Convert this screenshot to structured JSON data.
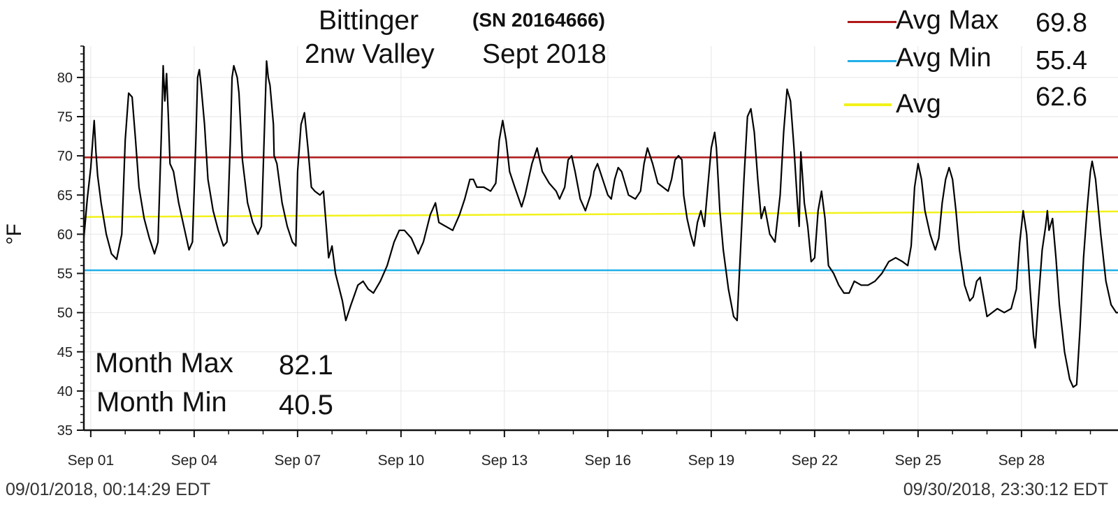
{
  "header": {
    "title_line1": "Bittinger",
    "serial": "(SN 20164666)",
    "title_line2": "2nw Valley",
    "period": "Sept 2018"
  },
  "legend": {
    "avg_max": {
      "label": "Avg Max",
      "value": "69.8",
      "color": "#b01818"
    },
    "avg_min": {
      "label": "Avg Min",
      "value": "55.4",
      "color": "#20b0e8"
    },
    "avg": {
      "label": "Avg",
      "value": "62.6",
      "color": "#f2f21a"
    }
  },
  "stats": {
    "month_max_label": "Month Max",
    "month_max_value": "82.1",
    "month_min_label": "Month Min",
    "month_min_value": "40.5"
  },
  "footer": {
    "start": "09/01/2018, 00:14:29 EDT",
    "end": "09/30/2018, 23:30:12 EDT"
  },
  "chart_data": {
    "type": "line",
    "ylabel": "°F",
    "ylim": [
      35,
      84
    ],
    "yticks": [
      35,
      40,
      45,
      50,
      55,
      60,
      65,
      70,
      75,
      80
    ],
    "xlim": [
      0.8,
      30.8
    ],
    "xticks": [
      {
        "day": 1,
        "label": "Sep 01"
      },
      {
        "day": 4,
        "label": "Sep 04"
      },
      {
        "day": 7,
        "label": "Sep 07"
      },
      {
        "day": 10,
        "label": "Sep 10"
      },
      {
        "day": 13,
        "label": "Sep 13"
      },
      {
        "day": 16,
        "label": "Sep 16"
      },
      {
        "day": 19,
        "label": "Sep 19"
      },
      {
        "day": 22,
        "label": "Sep 22"
      },
      {
        "day": 25,
        "label": "Sep 25"
      },
      {
        "day": 28,
        "label": "Sep 28"
      }
    ],
    "grid": true,
    "reference_lines": [
      {
        "name": "Avg Max",
        "y": 69.8,
        "color": "#b01818"
      },
      {
        "name": "Avg Min",
        "y": 55.4,
        "color": "#20b0e8"
      },
      {
        "name": "Avg",
        "points": [
          [
            0.8,
            62.2
          ],
          [
            30.8,
            62.9
          ]
        ],
        "color": "#f2f21a"
      }
    ],
    "series": [
      {
        "color": "#000000",
        "points": [
          [
            0.8,
            59.5
          ],
          [
            0.9,
            64.5
          ],
          [
            1.0,
            68.5
          ],
          [
            1.1,
            74.5
          ],
          [
            1.15,
            70.5
          ],
          [
            1.2,
            67.5
          ],
          [
            1.3,
            64
          ],
          [
            1.45,
            60
          ],
          [
            1.6,
            57.5
          ],
          [
            1.75,
            56.8
          ],
          [
            1.9,
            60
          ],
          [
            2.0,
            72
          ],
          [
            2.1,
            78
          ],
          [
            2.2,
            77.5
          ],
          [
            2.3,
            72
          ],
          [
            2.4,
            66
          ],
          [
            2.55,
            62
          ],
          [
            2.7,
            59.5
          ],
          [
            2.85,
            57.5
          ],
          [
            2.95,
            59
          ],
          [
            3.05,
            73
          ],
          [
            3.1,
            81.5
          ],
          [
            3.15,
            77
          ],
          [
            3.2,
            80.5
          ],
          [
            3.25,
            75
          ],
          [
            3.3,
            69
          ],
          [
            3.4,
            68
          ],
          [
            3.55,
            64
          ],
          [
            3.7,
            61
          ],
          [
            3.85,
            58
          ],
          [
            3.95,
            59
          ],
          [
            4.05,
            72
          ],
          [
            4.1,
            80
          ],
          [
            4.15,
            81
          ],
          [
            4.2,
            79
          ],
          [
            4.3,
            74
          ],
          [
            4.4,
            67
          ],
          [
            4.55,
            63
          ],
          [
            4.7,
            60.5
          ],
          [
            4.85,
            58.5
          ],
          [
            4.95,
            59
          ],
          [
            5.05,
            72
          ],
          [
            5.1,
            80
          ],
          [
            5.15,
            81.5
          ],
          [
            5.25,
            80
          ],
          [
            5.3,
            78
          ],
          [
            5.4,
            69.5
          ],
          [
            5.55,
            64
          ],
          [
            5.7,
            61.5
          ],
          [
            5.85,
            60
          ],
          [
            5.95,
            61
          ],
          [
            6.05,
            75
          ],
          [
            6.1,
            82.1
          ],
          [
            6.15,
            80
          ],
          [
            6.2,
            79
          ],
          [
            6.3,
            74
          ],
          [
            6.32,
            70
          ],
          [
            6.4,
            69
          ],
          [
            6.55,
            64
          ],
          [
            6.7,
            61
          ],
          [
            6.85,
            59
          ],
          [
            6.95,
            58.5
          ],
          [
            7.0,
            68
          ],
          [
            7.1,
            74
          ],
          [
            7.2,
            75.5
          ],
          [
            7.3,
            71
          ],
          [
            7.4,
            66
          ],
          [
            7.5,
            65.5
          ],
          [
            7.65,
            65
          ],
          [
            7.75,
            65.5
          ],
          [
            7.85,
            60
          ],
          [
            7.9,
            57
          ],
          [
            8.0,
            58.5
          ],
          [
            8.1,
            55
          ],
          [
            8.3,
            51.5
          ],
          [
            8.4,
            49
          ],
          [
            8.55,
            51
          ],
          [
            8.75,
            53.5
          ],
          [
            8.9,
            54
          ],
          [
            9.05,
            53
          ],
          [
            9.2,
            52.5
          ],
          [
            9.4,
            54
          ],
          [
            9.6,
            56
          ],
          [
            9.8,
            59
          ],
          [
            9.95,
            60.5
          ],
          [
            10.1,
            60.5
          ],
          [
            10.3,
            59.5
          ],
          [
            10.5,
            57.5
          ],
          [
            10.65,
            59
          ],
          [
            10.85,
            62.5
          ],
          [
            11.0,
            64
          ],
          [
            11.1,
            61.5
          ],
          [
            11.3,
            61
          ],
          [
            11.5,
            60.5
          ],
          [
            11.7,
            62.5
          ],
          [
            11.85,
            64.5
          ],
          [
            12.0,
            67
          ],
          [
            12.1,
            67
          ],
          [
            12.2,
            66
          ],
          [
            12.4,
            66
          ],
          [
            12.6,
            65.5
          ],
          [
            12.75,
            66.5
          ],
          [
            12.85,
            72
          ],
          [
            12.95,
            74.5
          ],
          [
            13.05,
            72
          ],
          [
            13.15,
            68
          ],
          [
            13.3,
            66
          ],
          [
            13.5,
            63.5
          ],
          [
            13.6,
            65
          ],
          [
            13.8,
            69
          ],
          [
            13.95,
            71
          ],
          [
            14.1,
            68
          ],
          [
            14.3,
            66.5
          ],
          [
            14.5,
            65.5
          ],
          [
            14.6,
            64.5
          ],
          [
            14.75,
            66
          ],
          [
            14.85,
            69.5
          ],
          [
            14.95,
            70
          ],
          [
            15.05,
            68
          ],
          [
            15.2,
            64.5
          ],
          [
            15.35,
            63
          ],
          [
            15.5,
            65
          ],
          [
            15.6,
            68
          ],
          [
            15.7,
            69
          ],
          [
            15.85,
            67
          ],
          [
            16.0,
            65
          ],
          [
            16.1,
            64.5
          ],
          [
            16.2,
            67
          ],
          [
            16.3,
            68.5
          ],
          [
            16.4,
            68
          ],
          [
            16.6,
            65
          ],
          [
            16.8,
            64.5
          ],
          [
            16.95,
            65.5
          ],
          [
            17.05,
            69
          ],
          [
            17.15,
            71
          ],
          [
            17.3,
            69
          ],
          [
            17.45,
            66.5
          ],
          [
            17.6,
            66
          ],
          [
            17.75,
            65.5
          ],
          [
            17.85,
            67
          ],
          [
            17.95,
            69.5
          ],
          [
            18.05,
            70
          ],
          [
            18.15,
            69.5
          ],
          [
            18.2,
            65
          ],
          [
            18.3,
            62
          ],
          [
            18.4,
            60
          ],
          [
            18.5,
            58.5
          ],
          [
            18.6,
            61.5
          ],
          [
            18.7,
            63
          ],
          [
            18.8,
            61
          ],
          [
            18.9,
            66
          ],
          [
            19.0,
            71
          ],
          [
            19.1,
            73
          ],
          [
            19.15,
            71
          ],
          [
            19.25,
            63
          ],
          [
            19.35,
            58
          ],
          [
            19.5,
            53
          ],
          [
            19.65,
            49.5
          ],
          [
            19.75,
            49
          ],
          [
            19.85,
            58
          ],
          [
            19.95,
            67
          ],
          [
            20.05,
            75
          ],
          [
            20.15,
            76
          ],
          [
            20.25,
            73
          ],
          [
            20.35,
            67
          ],
          [
            20.45,
            62
          ],
          [
            20.55,
            63.5
          ],
          [
            20.7,
            60
          ],
          [
            20.85,
            59
          ],
          [
            21.0,
            65
          ],
          [
            21.1,
            73
          ],
          [
            21.2,
            78.5
          ],
          [
            21.3,
            77
          ],
          [
            21.4,
            71
          ],
          [
            21.5,
            64
          ],
          [
            21.55,
            61
          ],
          [
            21.6,
            70.5
          ],
          [
            21.7,
            64
          ],
          [
            21.8,
            61
          ],
          [
            21.9,
            56.5
          ],
          [
            22.0,
            57
          ],
          [
            22.1,
            63
          ],
          [
            22.2,
            65.5
          ],
          [
            22.3,
            62
          ],
          [
            22.4,
            56
          ],
          [
            22.55,
            55
          ],
          [
            22.7,
            53.5
          ],
          [
            22.85,
            52.5
          ],
          [
            23.0,
            52.5
          ],
          [
            23.15,
            54
          ],
          [
            23.35,
            53.5
          ],
          [
            23.55,
            53.5
          ],
          [
            23.75,
            54
          ],
          [
            23.95,
            55
          ],
          [
            24.15,
            56.5
          ],
          [
            24.35,
            57
          ],
          [
            24.55,
            56.5
          ],
          [
            24.7,
            56
          ],
          [
            24.8,
            58.5
          ],
          [
            24.9,
            66
          ],
          [
            25.0,
            69
          ],
          [
            25.1,
            67
          ],
          [
            25.2,
            63
          ],
          [
            25.35,
            60
          ],
          [
            25.5,
            58
          ],
          [
            25.6,
            59.5
          ],
          [
            25.7,
            64
          ],
          [
            25.8,
            67
          ],
          [
            25.9,
            68.5
          ],
          [
            26.0,
            67
          ],
          [
            26.1,
            63
          ],
          [
            26.2,
            58
          ],
          [
            26.35,
            53.5
          ],
          [
            26.5,
            51.5
          ],
          [
            26.6,
            52
          ],
          [
            26.7,
            54
          ],
          [
            26.8,
            54.5
          ],
          [
            26.9,
            52
          ],
          [
            27.0,
            49.5
          ],
          [
            27.15,
            50
          ],
          [
            27.3,
            50.5
          ],
          [
            27.5,
            50
          ],
          [
            27.7,
            50.5
          ],
          [
            27.85,
            53
          ],
          [
            27.95,
            59
          ],
          [
            28.05,
            63
          ],
          [
            28.15,
            60
          ],
          [
            28.25,
            53
          ],
          [
            28.35,
            47
          ],
          [
            28.4,
            45.5
          ],
          [
            28.5,
            52
          ],
          [
            28.6,
            58
          ],
          [
            28.7,
            61
          ],
          [
            28.75,
            63
          ],
          [
            28.8,
            60.5
          ],
          [
            28.9,
            62
          ],
          [
            29.0,
            57
          ],
          [
            29.1,
            51
          ],
          [
            29.25,
            45
          ],
          [
            29.4,
            41.5
          ],
          [
            29.5,
            40.5
          ],
          [
            29.6,
            40.8
          ],
          [
            29.7,
            48
          ],
          [
            29.8,
            57
          ],
          [
            29.9,
            63
          ],
          [
            30.0,
            68
          ],
          [
            30.05,
            69.3
          ],
          [
            30.15,
            67
          ],
          [
            30.3,
            60
          ],
          [
            30.45,
            54
          ],
          [
            30.6,
            51
          ],
          [
            30.75,
            50
          ],
          [
            30.8,
            50
          ]
        ]
      }
    ]
  }
}
